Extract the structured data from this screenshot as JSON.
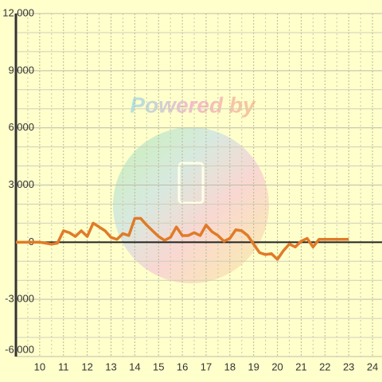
{
  "chart_data": {
    "type": "line",
    "watermark": "Powered by",
    "x": [
      9,
      10,
      10.25,
      10.5,
      10.75,
      11,
      11.25,
      11.5,
      11.75,
      12,
      12.25,
      12.5,
      12.75,
      13,
      13.25,
      13.5,
      13.75,
      14,
      14.25,
      14.5,
      14.75,
      15,
      15.25,
      15.5,
      15.75,
      16,
      16.25,
      16.5,
      16.75,
      17,
      17.25,
      17.5,
      17.75,
      18,
      18.25,
      18.5,
      18.75,
      19,
      19.25,
      19.5,
      19.75,
      20,
      20.25,
      20.5,
      20.75,
      21,
      21.25,
      21.5,
      21.75,
      22,
      22.25,
      23
    ],
    "series": [
      {
        "color": "#e07b28",
        "values": [
          0,
          0,
          -50,
          -100,
          -50,
          600,
          500,
          300,
          600,
          300,
          1000,
          800,
          600,
          250,
          150,
          450,
          350,
          1250,
          1250,
          900,
          600,
          300,
          100,
          250,
          800,
          350,
          350,
          500,
          350,
          900,
          550,
          350,
          50,
          200,
          650,
          600,
          350,
          -100,
          -550,
          -650,
          -600,
          -900,
          -450,
          -100,
          -250,
          50,
          200,
          -250,
          150,
          150,
          150,
          150
        ]
      }
    ],
    "xlim": [
      9,
      24.4
    ],
    "xticks": [
      10,
      11,
      12,
      13,
      14,
      15,
      16,
      17,
      18,
      19,
      20,
      21,
      22,
      23,
      24
    ],
    "xminor": [
      9.5,
      10.5,
      11.5,
      12.5,
      13.5,
      14.5,
      15.5,
      16.5,
      17.5,
      18.5,
      19.5,
      20.5,
      21.5,
      22.5,
      23.5
    ],
    "ylim": [
      -6000,
      12000
    ],
    "yticks": [
      {
        "value": -6000,
        "label": "-6,000"
      },
      {
        "value": -3000,
        "label": "-3,000"
      },
      0,
      {
        "value": 3000,
        "label": "3,000"
      },
      {
        "value": 6000,
        "label": "6,000"
      },
      {
        "value": 9000,
        "label": "9,000"
      },
      {
        "value": 12000,
        "label": "12,000"
      }
    ],
    "yminor": [
      -5000,
      -4000,
      -2000,
      -1000,
      1000,
      2000,
      4000,
      5000,
      7000,
      8000,
      10000,
      11000
    ],
    "grid": true
  }
}
